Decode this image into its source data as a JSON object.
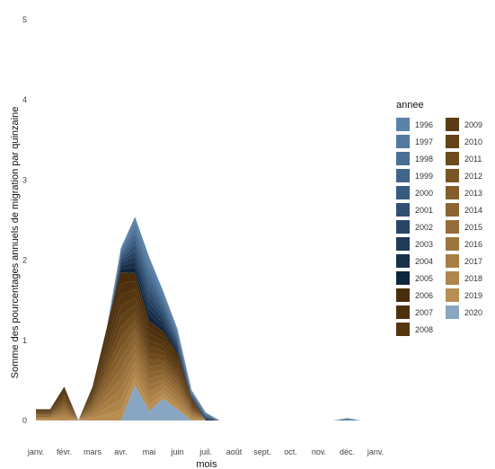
{
  "chart_data": {
    "type": "area",
    "stacked": true,
    "xlabel": "mois",
    "ylabel": "Somme des pourcentages annuels de migration par quinzaine",
    "x_ticks": [
      "janv.",
      "févr.",
      "mars",
      "avr.",
      "mai",
      "juin",
      "juil.",
      "août",
      "sept.",
      "oct.",
      "nov.",
      "déc.",
      "janv."
    ],
    "xlim": [
      0,
      24
    ],
    "ylim": [
      0,
      5
    ],
    "y_ticks": [
      0,
      1,
      2,
      3,
      4,
      5
    ],
    "grid": false,
    "legend_title": "annee",
    "legend_position": "right",
    "colors": {
      "1996": "#5b82a8",
      "1997": "#54799e",
      "1998": "#4a6f94",
      "1999": "#41658a",
      "2000": "#385a7e",
      "2001": "#304f72",
      "2002": "#284566",
      "2003": "#203a58",
      "2004": "#18304a",
      "2005": "#10253e",
      "2006": "#4a2e0c",
      "2007": "#4e310e",
      "2008": "#553610",
      "2009": "#5c3c14",
      "2010": "#634218",
      "2011": "#6e4a1e",
      "2012": "#795424",
      "2013": "#835d2b",
      "2014": "#8c6532",
      "2015": "#966d38",
      "2016": "#9f753e",
      "2017": "#a87d44",
      "2018": "#b0854b",
      "2019": "#b88e53",
      "2020": "#88a6c2"
    },
    "x": [
      0,
      1,
      2,
      3,
      4,
      5,
      6,
      7,
      8,
      9,
      10,
      11,
      12,
      13,
      14,
      15,
      16,
      17,
      18,
      19,
      20,
      21,
      22,
      23
    ],
    "series": [
      {
        "name": "1996",
        "values": [
          0,
          0,
          0,
          0,
          0,
          0,
          0.02,
          0.07,
          0.08,
          0.05,
          0.03,
          0.01,
          0.01,
          0,
          0,
          0,
          0,
          0,
          0,
          0,
          0,
          0,
          0.01,
          0
        ]
      },
      {
        "name": "1997",
        "values": [
          0,
          0,
          0,
          0,
          0,
          0,
          0.02,
          0.07,
          0.08,
          0.05,
          0.03,
          0.01,
          0.01,
          0,
          0,
          0,
          0,
          0,
          0,
          0,
          0,
          0,
          0.01,
          0
        ]
      },
      {
        "name": "1998",
        "values": [
          0,
          0,
          0,
          0,
          0,
          0,
          0.03,
          0.07,
          0.08,
          0.05,
          0.03,
          0.01,
          0.01,
          0,
          0,
          0,
          0,
          0,
          0,
          0,
          0,
          0,
          0.01,
          0
        ]
      },
      {
        "name": "1999",
        "values": [
          0,
          0,
          0,
          0,
          0,
          0,
          0.03,
          0.07,
          0.08,
          0.05,
          0.03,
          0.01,
          0.01,
          0,
          0,
          0,
          0,
          0,
          0,
          0,
          0,
          0,
          0,
          0
        ]
      },
      {
        "name": "2000",
        "values": [
          0,
          0,
          0,
          0,
          0,
          0,
          0.03,
          0.07,
          0.08,
          0.05,
          0.03,
          0.01,
          0.01,
          0,
          0,
          0,
          0,
          0,
          0,
          0,
          0,
          0,
          0,
          0
        ]
      },
      {
        "name": "2001",
        "values": [
          0,
          0,
          0,
          0,
          0,
          0,
          0.03,
          0.07,
          0.08,
          0.05,
          0.03,
          0.01,
          0.01,
          0,
          0,
          0,
          0,
          0,
          0,
          0,
          0,
          0,
          0,
          0
        ]
      },
      {
        "name": "2002",
        "values": [
          0,
          0,
          0,
          0,
          0,
          0,
          0.03,
          0.07,
          0.08,
          0.05,
          0.03,
          0.01,
          0.01,
          0,
          0,
          0,
          0,
          0,
          0,
          0,
          0,
          0,
          0,
          0
        ]
      },
      {
        "name": "2003",
        "values": [
          0,
          0,
          0,
          0,
          0,
          0,
          0.03,
          0.07,
          0.08,
          0.05,
          0.03,
          0.01,
          0.01,
          0,
          0,
          0,
          0,
          0,
          0,
          0,
          0,
          0,
          0,
          0
        ]
      },
      {
        "name": "2004",
        "values": [
          0,
          0,
          0,
          0,
          0,
          0,
          0.04,
          0.07,
          0.08,
          0.05,
          0.03,
          0.01,
          0.01,
          0,
          0,
          0,
          0,
          0,
          0,
          0,
          0,
          0,
          0,
          0
        ]
      },
      {
        "name": "2005",
        "values": [
          0,
          0,
          0,
          0,
          0,
          0,
          0.04,
          0.07,
          0.08,
          0.05,
          0.03,
          0.01,
          0.01,
          0,
          0,
          0,
          0,
          0,
          0,
          0,
          0,
          0,
          0,
          0
        ]
      },
      {
        "name": "2006",
        "values": [
          0.01,
          0.01,
          0.03,
          0,
          0.03,
          0.09,
          0.14,
          0.1,
          0.08,
          0.06,
          0.05,
          0.02,
          0,
          0,
          0,
          0,
          0,
          0,
          0,
          0,
          0,
          0,
          0,
          0
        ]
      },
      {
        "name": "2007",
        "values": [
          0.01,
          0.01,
          0.03,
          0,
          0.03,
          0.09,
          0.14,
          0.1,
          0.08,
          0.06,
          0.05,
          0.02,
          0,
          0,
          0,
          0,
          0,
          0,
          0,
          0,
          0,
          0,
          0,
          0
        ]
      },
      {
        "name": "2008",
        "values": [
          0.01,
          0.01,
          0.03,
          0,
          0.03,
          0.09,
          0.14,
          0.1,
          0.08,
          0.06,
          0.05,
          0.02,
          0,
          0,
          0,
          0,
          0,
          0,
          0,
          0,
          0,
          0,
          0,
          0
        ]
      },
      {
        "name": "2009",
        "values": [
          0.01,
          0.01,
          0.03,
          0,
          0.03,
          0.08,
          0.13,
          0.1,
          0.08,
          0.06,
          0.05,
          0.02,
          0,
          0,
          0,
          0,
          0,
          0,
          0,
          0,
          0,
          0,
          0,
          0
        ]
      },
      {
        "name": "2010",
        "values": [
          0.01,
          0.01,
          0.03,
          0,
          0.03,
          0.08,
          0.13,
          0.1,
          0.08,
          0.06,
          0.05,
          0.02,
          0,
          0,
          0,
          0,
          0,
          0,
          0,
          0,
          0,
          0,
          0,
          0
        ]
      },
      {
        "name": "2011",
        "values": [
          0.01,
          0.01,
          0.03,
          0,
          0.03,
          0.08,
          0.13,
          0.1,
          0.08,
          0.06,
          0.05,
          0.02,
          0,
          0,
          0,
          0,
          0,
          0,
          0,
          0,
          0,
          0,
          0,
          0
        ]
      },
      {
        "name": "2012",
        "values": [
          0.01,
          0.01,
          0.03,
          0,
          0.03,
          0.08,
          0.13,
          0.1,
          0.08,
          0.06,
          0.05,
          0.02,
          0,
          0,
          0,
          0,
          0,
          0,
          0,
          0,
          0,
          0,
          0,
          0
        ]
      },
      {
        "name": "2013",
        "values": [
          0.01,
          0.01,
          0.03,
          0,
          0.03,
          0.08,
          0.13,
          0.1,
          0.08,
          0.06,
          0.05,
          0.02,
          0,
          0,
          0,
          0,
          0,
          0,
          0,
          0,
          0,
          0,
          0,
          0
        ]
      },
      {
        "name": "2014",
        "values": [
          0.01,
          0.01,
          0.03,
          0,
          0.03,
          0.08,
          0.13,
          0.1,
          0.08,
          0.06,
          0.05,
          0.02,
          0,
          0,
          0,
          0,
          0,
          0,
          0,
          0,
          0,
          0,
          0,
          0
        ]
      },
      {
        "name": "2015",
        "values": [
          0.01,
          0.01,
          0.03,
          0,
          0.03,
          0.08,
          0.13,
          0.1,
          0.08,
          0.06,
          0.05,
          0.02,
          0,
          0,
          0,
          0,
          0,
          0,
          0,
          0,
          0,
          0,
          0,
          0
        ]
      },
      {
        "name": "2016",
        "values": [
          0.01,
          0.01,
          0.03,
          0,
          0.03,
          0.08,
          0.13,
          0.1,
          0.08,
          0.06,
          0.05,
          0.02,
          0,
          0,
          0,
          0,
          0,
          0,
          0,
          0,
          0,
          0,
          0,
          0
        ]
      },
      {
        "name": "2017",
        "values": [
          0.01,
          0.01,
          0.03,
          0,
          0.03,
          0.08,
          0.13,
          0.1,
          0.08,
          0.06,
          0.05,
          0.02,
          0,
          0,
          0,
          0,
          0,
          0,
          0,
          0,
          0,
          0,
          0,
          0
        ]
      },
      {
        "name": "2018",
        "values": [
          0.01,
          0.01,
          0.03,
          0,
          0.03,
          0.08,
          0.13,
          0.1,
          0.08,
          0.06,
          0.05,
          0.02,
          0,
          0,
          0,
          0,
          0,
          0,
          0,
          0,
          0,
          0,
          0,
          0
        ]
      },
      {
        "name": "2019",
        "values": [
          0.01,
          0.01,
          0.03,
          0,
          0.03,
          0.08,
          0.13,
          0.1,
          0.08,
          0.06,
          0.05,
          0.02,
          0,
          0,
          0,
          0,
          0,
          0,
          0,
          0,
          0,
          0,
          0,
          0
        ]
      },
      {
        "name": "2020",
        "values": [
          0,
          0,
          0,
          0,
          0,
          0,
          0,
          0.44,
          0.12,
          0.27,
          0.14,
          0,
          0,
          0,
          0,
          0,
          0,
          0,
          0,
          0,
          0,
          0,
          0,
          0
        ]
      }
    ]
  }
}
